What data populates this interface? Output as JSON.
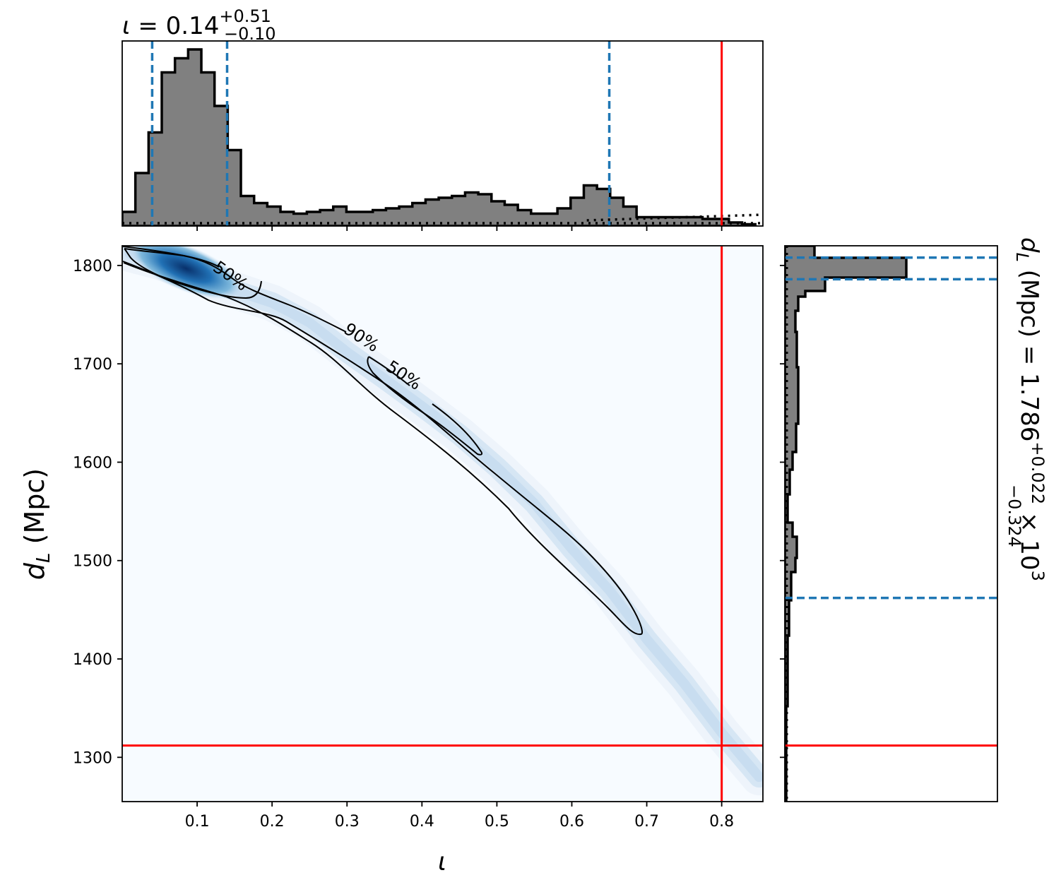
{
  "chart_data": [
    {
      "type": "histogram",
      "panel": "marginal-iota",
      "title_symbol": "ι",
      "title_median": "0.14",
      "title_plus": "+0.51",
      "title_minus": "−0.10",
      "xlim": [
        0.0,
        0.855
      ],
      "bin_edges": [
        0.0,
        0.0176,
        0.0352,
        0.0528,
        0.0704,
        0.088,
        0.1056,
        0.1232,
        0.1408,
        0.1584,
        0.176,
        0.1936,
        0.2112,
        0.2288,
        0.2464,
        0.264,
        0.2816,
        0.2992,
        0.3168,
        0.3344,
        0.352,
        0.3696,
        0.3872,
        0.4048,
        0.4224,
        0.44,
        0.4576,
        0.4752,
        0.4928,
        0.5104,
        0.528,
        0.5456,
        0.5632,
        0.5808,
        0.5984,
        0.616,
        0.6336,
        0.6512,
        0.6688,
        0.6864,
        0.704,
        0.7216,
        0.7392,
        0.7568,
        0.7744,
        0.792,
        0.8096,
        0.8272,
        0.8448
      ],
      "counts": [
        0.08,
        0.3,
        0.53,
        0.87,
        0.95,
        1.0,
        0.87,
        0.68,
        0.43,
        0.17,
        0.13,
        0.11,
        0.08,
        0.07,
        0.08,
        0.09,
        0.11,
        0.08,
        0.08,
        0.09,
        0.1,
        0.11,
        0.13,
        0.15,
        0.16,
        0.17,
        0.19,
        0.18,
        0.14,
        0.12,
        0.09,
        0.07,
        0.07,
        0.1,
        0.16,
        0.23,
        0.21,
        0.16,
        0.11,
        0.05,
        0.05,
        0.05,
        0.05,
        0.05,
        0.04,
        0.04,
        0.02,
        0.01
      ],
      "quantile_lines": [
        0.04,
        0.14,
        0.65
      ],
      "true_value": 0.8,
      "prior_level": 0.06
    },
    {
      "type": "heatmap",
      "panel": "joint-iota-dL",
      "xlabel": "ι",
      "ylabel_symbol": "d",
      "ylabel_sub": "L",
      "ylabel_unit": "(Mpc)",
      "xlim": [
        0.0,
        0.855
      ],
      "ylim": [
        1255,
        1820
      ],
      "xticks": [
        "0.1",
        "0.2",
        "0.3",
        "0.4",
        "0.5",
        "0.6",
        "0.7",
        "0.8"
      ],
      "yticks": [
        "1300",
        "1400",
        "1500",
        "1600",
        "1700",
        "1800"
      ],
      "density_ridge": [
        [
          0.01,
          1812
        ],
        [
          0.05,
          1804
        ],
        [
          0.08,
          1796
        ],
        [
          0.12,
          1783
        ],
        [
          0.16,
          1772
        ],
        [
          0.2,
          1762
        ],
        [
          0.25,
          1742
        ],
        [
          0.3,
          1712
        ],
        [
          0.35,
          1685
        ],
        [
          0.4,
          1657
        ],
        [
          0.45,
          1628
        ],
        [
          0.5,
          1595
        ],
        [
          0.55,
          1558
        ],
        [
          0.6,
          1512
        ],
        [
          0.65,
          1470
        ],
        [
          0.7,
          1420
        ],
        [
          0.75,
          1375
        ],
        [
          0.8,
          1325
        ],
        [
          0.85,
          1280
        ]
      ],
      "density_peak": [
        0.085,
        1797
      ],
      "contour_labels": [
        "50%",
        "90%",
        "50%"
      ],
      "true_value": [
        0.8,
        1312
      ]
    },
    {
      "type": "histogram",
      "panel": "marginal-dL",
      "orientation": "horizontal",
      "label_symbol": "d",
      "label_sub": "L",
      "label_unit": "(Mpc) = 1.786",
      "label_plus": "+0.022",
      "label_minus": "−0.324",
      "label_scale": "× 10",
      "label_exp": "3",
      "ylim": [
        1255,
        1820
      ],
      "quantile_lines": [
        1462,
        1786,
        1808
      ],
      "true_value": 1312
    }
  ]
}
